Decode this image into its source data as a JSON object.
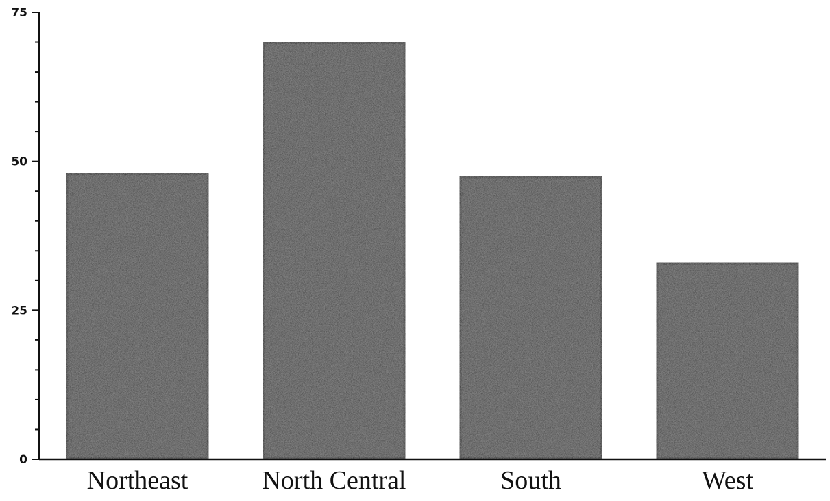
{
  "chart_data": {
    "type": "bar",
    "title": "",
    "xlabel": "",
    "ylabel": "",
    "categories": [
      "Northeast",
      "North Central",
      "South",
      "West"
    ],
    "values": [
      48,
      70,
      47.5,
      33
    ],
    "ylim": [
      0,
      75
    ],
    "yticks": [
      0,
      25,
      50,
      75
    ],
    "y_tick_labels": [
      "0",
      "25",
      "50",
      "75"
    ],
    "minor_tick_step": 5,
    "grid": false,
    "legend": "none",
    "colors": {
      "bar_fill": "#3c3c3c",
      "bar_edge": "#0e0e0e",
      "axis": "#111111",
      "background": "#ffffff"
    }
  }
}
